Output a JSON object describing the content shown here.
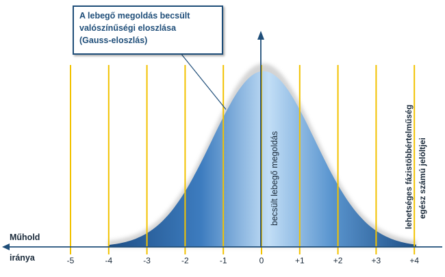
{
  "callout": {
    "lines": [
      "A lebegő megoldás becsült",
      "valószínűségi eloszlása",
      "(Gauss-eloszlás)"
    ]
  },
  "satellite_label": {
    "line1": "Műhold",
    "line2": "iránya"
  },
  "axis": {
    "ticks": [
      "-5",
      "-4",
      "-3",
      "-2",
      "-1",
      "0",
      "+1",
      "+2",
      "+3",
      "+4"
    ]
  },
  "estimate_label": "becsült lebegő megoldás",
  "candidates_label": {
    "line1": "lehetséges fázistöbbértelműség",
    "line2": "egész számú jelöltjei"
  },
  "colors": {
    "candidate_line": "#f2c200",
    "axis": "#1f4e79",
    "curve_dark": "#2e6ba8",
    "curve_light": "#b8d8f3"
  }
}
